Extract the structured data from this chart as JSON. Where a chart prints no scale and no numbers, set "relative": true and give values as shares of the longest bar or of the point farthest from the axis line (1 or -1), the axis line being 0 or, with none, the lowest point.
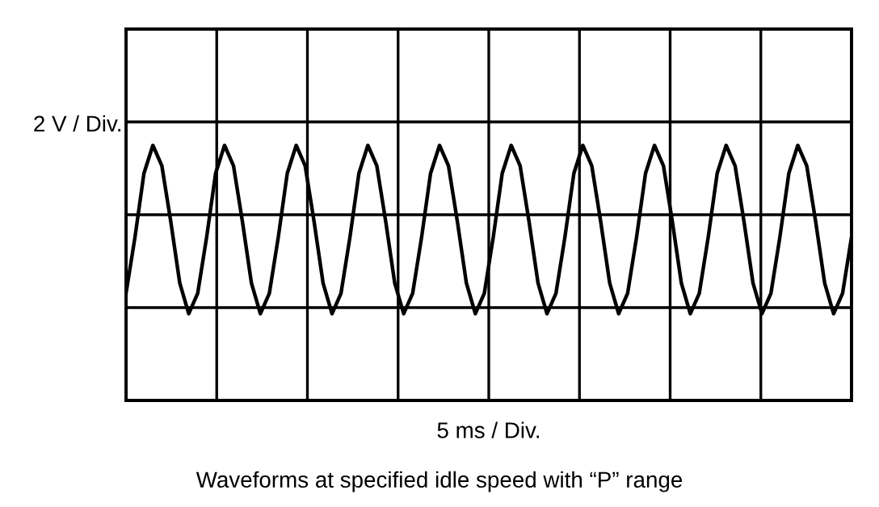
{
  "chart_data": {
    "type": "line",
    "relative": true,
    "grid": true,
    "legend": false,
    "marker": "none",
    "line_style": "solid",
    "ylabel": "2 V / Div.",
    "xlabel": "5 ms / Div.",
    "annotations": [
      "Waveforms at specified idle speed with “P” range"
    ],
    "categories": [
      null,
      null,
      null,
      null,
      null,
      null,
      null,
      null,
      null,
      null,
      null,
      null,
      null,
      null,
      null,
      null,
      null,
      null,
      null,
      null,
      null,
      null,
      null,
      null,
      null,
      null,
      null,
      null,
      null,
      null,
      null,
      null,
      null,
      null,
      null,
      null,
      null,
      null,
      null,
      null,
      null,
      null,
      null,
      null,
      null,
      null,
      null,
      null,
      null,
      null,
      null,
      null,
      null,
      null,
      null,
      null,
      null,
      null,
      null,
      null,
      null,
      null,
      null,
      null,
      null,
      null,
      null,
      null,
      null,
      null,
      null,
      null,
      null,
      null,
      null,
      null,
      null,
      null,
      null,
      null,
      null,
      null
    ],
    "series": [
      {
        "color": "#000000",
        "values": [
          0.42,
          0.64,
          0.89,
          1.0,
          0.92,
          0.7,
          0.46,
          0.34,
          0.42,
          0.64,
          0.89,
          1.0,
          0.92,
          0.7,
          0.46,
          0.34,
          0.42,
          0.64,
          0.89,
          1.0,
          0.92,
          0.7,
          0.46,
          0.34,
          0.42,
          0.64,
          0.89,
          1.0,
          0.92,
          0.7,
          0.46,
          0.34,
          0.42,
          0.64,
          0.89,
          1.0,
          0.92,
          0.7,
          0.46,
          0.34,
          0.42,
          0.64,
          0.89,
          1.0,
          0.92,
          0.7,
          0.46,
          0.34,
          0.42,
          0.64,
          0.89,
          1.0,
          0.92,
          0.7,
          0.46,
          0.34,
          0.42,
          0.64,
          0.89,
          1.0,
          0.92,
          0.7,
          0.46,
          0.34,
          0.42,
          0.64,
          0.89,
          1.0,
          0.92,
          0.7,
          0.46,
          0.34,
          0.42,
          0.64,
          0.89,
          1.0,
          0.92,
          0.7,
          0.46,
          0.34,
          0.42,
          0.64
        ]
      }
    ]
  }
}
